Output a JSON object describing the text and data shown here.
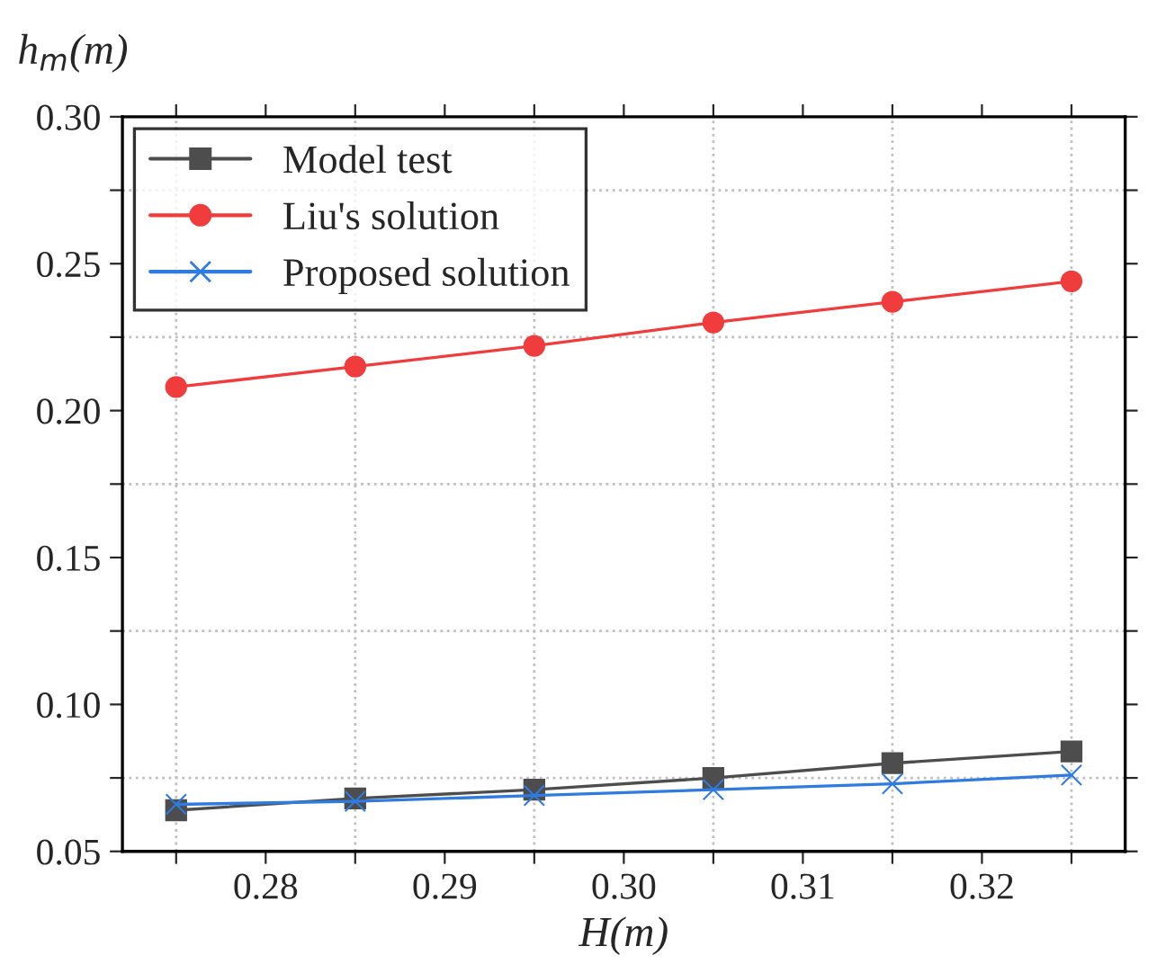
{
  "chart_data": {
    "type": "line",
    "xlabel": "H(m)",
    "ylabel": "h$_{m}$(m)",
    "x": [
      0.275,
      0.285,
      0.295,
      0.305,
      0.315,
      0.325
    ],
    "series": [
      {
        "name": "Model test",
        "color": "#4d4d4d",
        "marker": "square",
        "values": [
          0.064,
          0.068,
          0.071,
          0.075,
          0.08,
          0.084
        ]
      },
      {
        "name": "Liu's solution",
        "color": "#f03c3c",
        "marker": "circle",
        "values": [
          0.208,
          0.215,
          0.222,
          0.23,
          0.237,
          0.244
        ]
      },
      {
        "name": "Proposed solution",
        "color": "#2f7be0",
        "marker": "cross",
        "values": [
          0.066,
          0.067,
          0.069,
          0.071,
          0.073,
          0.076
        ]
      }
    ],
    "xlim": [
      0.272,
      0.328
    ],
    "xticks": [
      {
        "value": 0.275,
        "label": null
      },
      0.28,
      {
        "value": 0.285,
        "label": null
      },
      0.29,
      {
        "value": 0.295,
        "label": null
      },
      "0.30",
      {
        "value": 0.305,
        "label": null
      },
      0.31,
      {
        "value": 0.315,
        "label": null
      },
      0.32,
      {
        "value": 0.325,
        "label": null
      }
    ],
    "ylim": [
      0.05,
      0.3
    ],
    "yticks": [
      0.05,
      {
        "value": 0.075,
        "label": null
      },
      "0.10",
      {
        "value": 0.125,
        "label": null
      },
      0.15,
      {
        "value": 0.175,
        "label": null
      },
      "0.20",
      {
        "value": 0.225,
        "label": null
      },
      0.25,
      {
        "value": 0.275,
        "label": null
      },
      "0.30"
    ],
    "grid": true,
    "legend": "top left",
    "line_style": "solid"
  }
}
